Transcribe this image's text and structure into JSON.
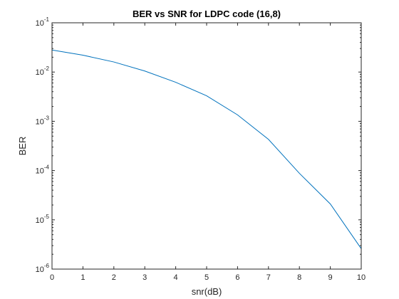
{
  "chart_data": {
    "type": "line",
    "title": "BER vs SNR for LDPC code (16,8)",
    "xlabel": "snr(dB)",
    "ylabel": "BER",
    "xlim": [
      0,
      10
    ],
    "ylim": [
      1e-06,
      0.1
    ],
    "yscale": "log",
    "grid": false,
    "box": true,
    "x_ticks": [
      0,
      1,
      2,
      3,
      4,
      5,
      6,
      7,
      8,
      9,
      10
    ],
    "x_tick_labels": [
      "0",
      "1",
      "2",
      "3",
      "4",
      "5",
      "6",
      "7",
      "8",
      "9",
      "10"
    ],
    "y_ticks": [
      {
        "value": 0.1,
        "base": "10",
        "exp": "-1"
      },
      {
        "value": 0.01,
        "base": "10",
        "exp": "-2"
      },
      {
        "value": 0.001,
        "base": "10",
        "exp": "-3"
      },
      {
        "value": 0.0001,
        "base": "10",
        "exp": "-4"
      },
      {
        "value": 1e-05,
        "base": "10",
        "exp": "-5"
      },
      {
        "value": 1e-06,
        "base": "10",
        "exp": "-6"
      }
    ],
    "series": [
      {
        "color": "#0072BD",
        "x": [
          0,
          1,
          2,
          3,
          4,
          5,
          6,
          7,
          8,
          9,
          10
        ],
        "y": [
          0.028,
          0.022,
          0.016,
          0.0105,
          0.0062,
          0.0033,
          0.00135,
          0.00043,
          8.8e-05,
          2.1e-05,
          2.6e-06
        ]
      }
    ]
  }
}
